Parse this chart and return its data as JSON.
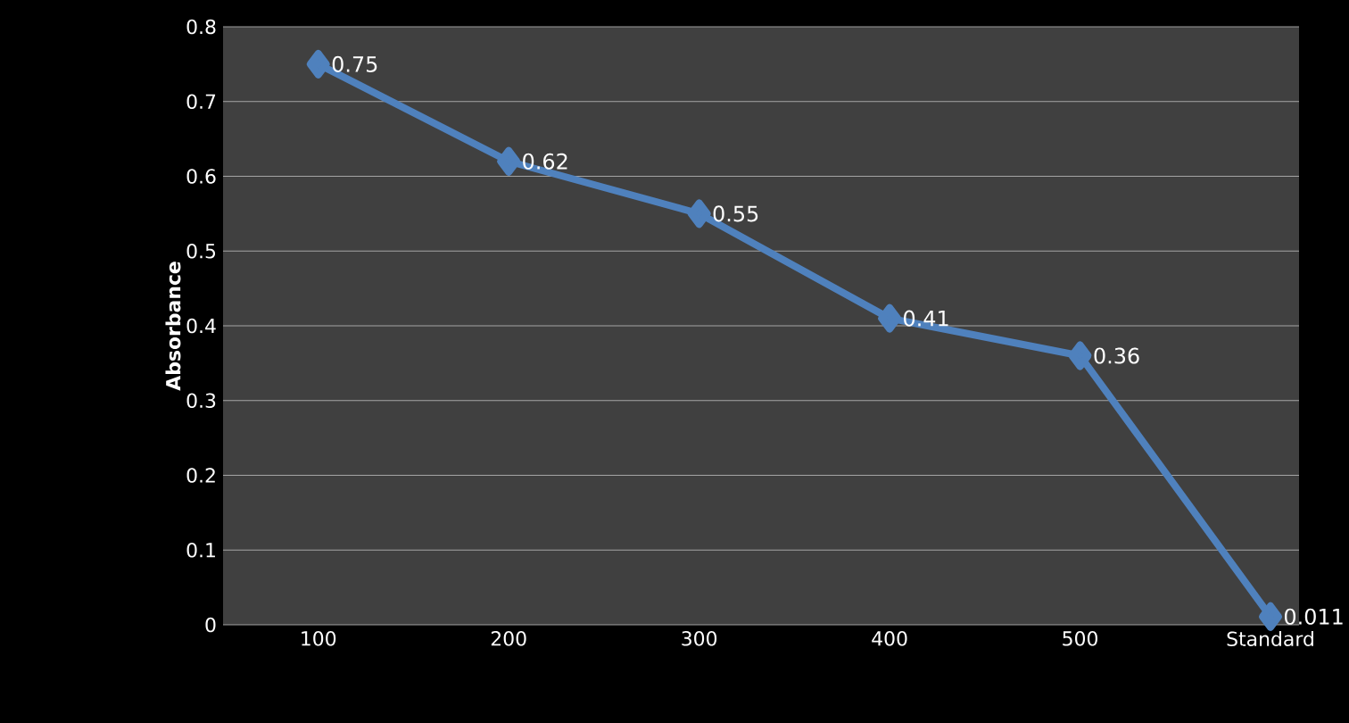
{
  "chart_data": {
    "type": "line",
    "ylabel": "Absorbance",
    "categories": [
      "100",
      "200",
      "300",
      "400",
      "500",
      "Standard"
    ],
    "series": [
      {
        "color": "#4f81bd",
        "values": [
          0.75,
          0.62,
          0.55,
          0.41,
          0.36,
          0.011
        ]
      }
    ],
    "ylim": [
      0,
      0.8
    ],
    "yticks": [
      0,
      0.1,
      0.2,
      0.3,
      0.4,
      0.5,
      0.6,
      0.7,
      0.8
    ],
    "grid": "y",
    "marker": "diamond",
    "line_style": "solid",
    "data_labels": true
  }
}
